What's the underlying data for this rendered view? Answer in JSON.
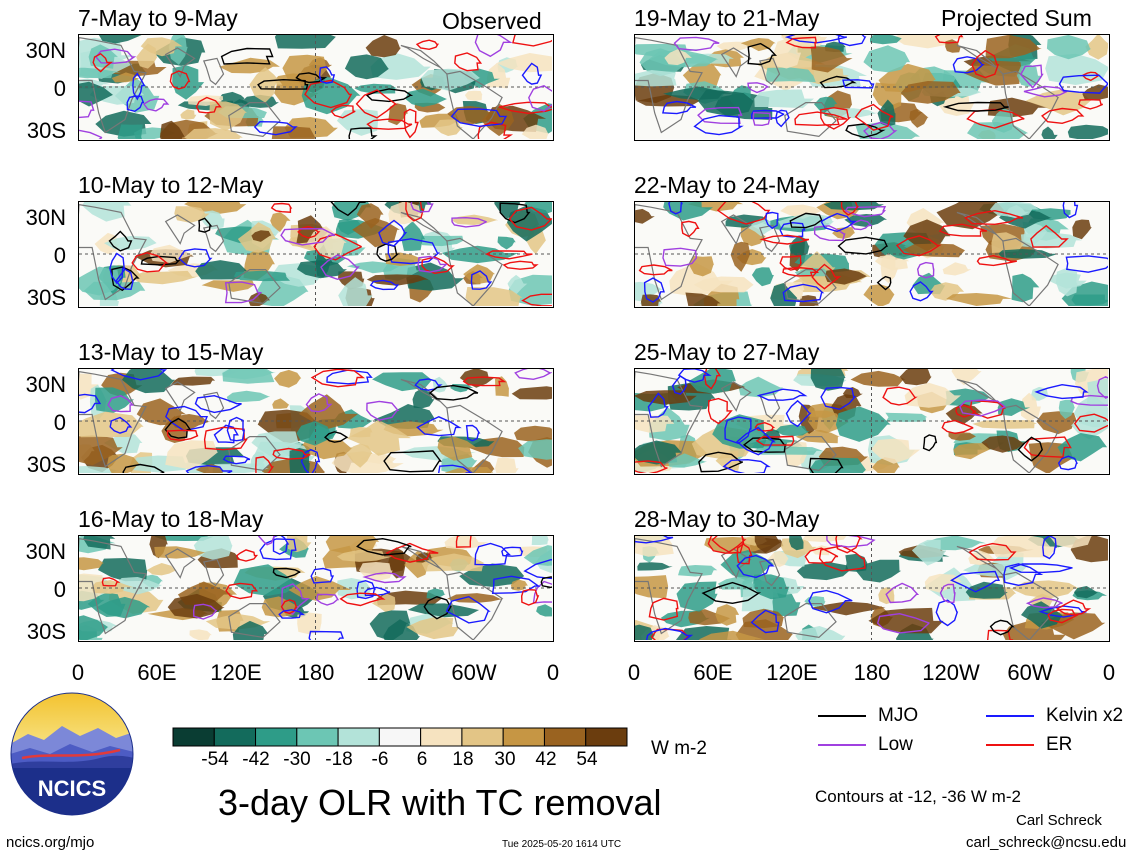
{
  "panels_left": [
    {
      "title": "7-May to 9-May",
      "tag": "Observed"
    },
    {
      "title": "10-May to 12-May",
      "tag": ""
    },
    {
      "title": "13-May to 15-May",
      "tag": ""
    },
    {
      "title": "16-May to 18-May",
      "tag": ""
    }
  ],
  "panels_right": [
    {
      "title": "19-May to 21-May",
      "tag": "Projected Sum"
    },
    {
      "title": "22-May to 24-May",
      "tag": ""
    },
    {
      "title": "25-May to 27-May",
      "tag": ""
    },
    {
      "title": "28-May to 30-May",
      "tag": ""
    }
  ],
  "lat_labels": [
    "30N",
    "0",
    "30S"
  ],
  "lon_labels": [
    "0",
    "60E",
    "120E",
    "180",
    "120W",
    "60W",
    "0"
  ],
  "colorbar": {
    "ticks": [
      "-54",
      "-42",
      "-30",
      "-18",
      "-6",
      "6",
      "18",
      "30",
      "42",
      "54"
    ],
    "units": "W m-2",
    "colors": [
      "#0a3d33",
      "#136b5c",
      "#2e9c88",
      "#6cc6b4",
      "#b3e3d9",
      "#f7f7f7",
      "#f6e3c0",
      "#e3c586",
      "#c69644",
      "#9a6320",
      "#6b3d0e"
    ]
  },
  "legend": {
    "items": [
      {
        "label": "MJO",
        "color": "#000000"
      },
      {
        "label": "Kelvin x2",
        "color": "#1a1aff"
      },
      {
        "label": "Low",
        "color": "#a040e0"
      },
      {
        "label": "ER",
        "color": "#ee1111"
      }
    ],
    "contours_note": "Contours at -12, -36 W m-2"
  },
  "logo_text": "NCICS",
  "main_title": "3-day OLR with TC removal",
  "site": "ncics.org/mjo",
  "timestamp": "Tue 2025-05-20 1614 UTC",
  "author": "Carl Schreck",
  "email": "carl_schreck@ncsu.edu"
}
